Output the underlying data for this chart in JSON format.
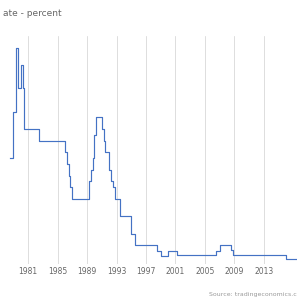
{
  "title": "ate - percent",
  "source_text": "Source: tradingeconomics.c",
  "line_color": "#4472c4",
  "background_color": "#ffffff",
  "grid_color": "#d0d0d0",
  "text_color": "#666666",
  "source_color": "#999999",
  "xlim": [
    1978.0,
    2017.5
  ],
  "ylim": [
    -0.3,
    9.5
  ],
  "xticks": [
    1981,
    1985,
    1989,
    1993,
    1997,
    2001,
    2005,
    2009,
    2013
  ],
  "data": [
    [
      1978.5,
      4.25
    ],
    [
      1979.0,
      6.25
    ],
    [
      1979.3,
      9.0
    ],
    [
      1979.6,
      7.25
    ],
    [
      1980.0,
      8.25
    ],
    [
      1980.25,
      7.25
    ],
    [
      1980.5,
      5.5
    ],
    [
      1981.0,
      5.5
    ],
    [
      1981.5,
      5.5
    ],
    [
      1982.0,
      5.5
    ],
    [
      1982.5,
      5.0
    ],
    [
      1983.0,
      5.0
    ],
    [
      1983.5,
      5.0
    ],
    [
      1984.0,
      5.0
    ],
    [
      1984.5,
      5.0
    ],
    [
      1985.0,
      5.0
    ],
    [
      1985.5,
      5.0
    ],
    [
      1986.0,
      4.5
    ],
    [
      1986.25,
      4.0
    ],
    [
      1986.5,
      3.5
    ],
    [
      1986.75,
      3.0
    ],
    [
      1987.0,
      2.5
    ],
    [
      1987.5,
      2.5
    ],
    [
      1988.0,
      2.5
    ],
    [
      1988.5,
      2.5
    ],
    [
      1989.0,
      2.5
    ],
    [
      1989.25,
      3.25
    ],
    [
      1989.5,
      3.75
    ],
    [
      1989.75,
      4.25
    ],
    [
      1990.0,
      5.25
    ],
    [
      1990.25,
      6.0
    ],
    [
      1990.5,
      6.0
    ],
    [
      1990.75,
      6.0
    ],
    [
      1991.0,
      5.5
    ],
    [
      1991.25,
      5.0
    ],
    [
      1991.5,
      4.5
    ],
    [
      1991.75,
      4.5
    ],
    [
      1992.0,
      3.75
    ],
    [
      1992.25,
      3.25
    ],
    [
      1992.5,
      3.0
    ],
    [
      1992.75,
      2.5
    ],
    [
      1993.0,
      2.5
    ],
    [
      1993.5,
      1.75
    ],
    [
      1994.0,
      1.75
    ],
    [
      1994.5,
      1.75
    ],
    [
      1995.0,
      1.0
    ],
    [
      1995.5,
      0.5
    ],
    [
      1996.0,
      0.5
    ],
    [
      1997.0,
      0.5
    ],
    [
      1998.0,
      0.5
    ],
    [
      1998.5,
      0.25
    ],
    [
      1999.0,
      0.03
    ],
    [
      1999.5,
      0.03
    ],
    [
      2000.0,
      0.25
    ],
    [
      2000.5,
      0.25
    ],
    [
      2001.0,
      0.25
    ],
    [
      2001.25,
      0.1
    ],
    [
      2001.5,
      0.1
    ],
    [
      2002.0,
      0.1
    ],
    [
      2003.0,
      0.1
    ],
    [
      2004.0,
      0.1
    ],
    [
      2005.0,
      0.1
    ],
    [
      2006.0,
      0.1
    ],
    [
      2006.5,
      0.25
    ],
    [
      2007.0,
      0.5
    ],
    [
      2007.5,
      0.5
    ],
    [
      2008.0,
      0.5
    ],
    [
      2008.5,
      0.3
    ],
    [
      2008.75,
      0.1
    ],
    [
      2009.0,
      0.1
    ],
    [
      2010.0,
      0.1
    ],
    [
      2011.0,
      0.1
    ],
    [
      2012.0,
      0.1
    ],
    [
      2013.0,
      0.1
    ],
    [
      2014.0,
      0.1
    ],
    [
      2015.0,
      0.1
    ],
    [
      2016.0,
      -0.1
    ],
    [
      2017.5,
      -0.1
    ]
  ]
}
